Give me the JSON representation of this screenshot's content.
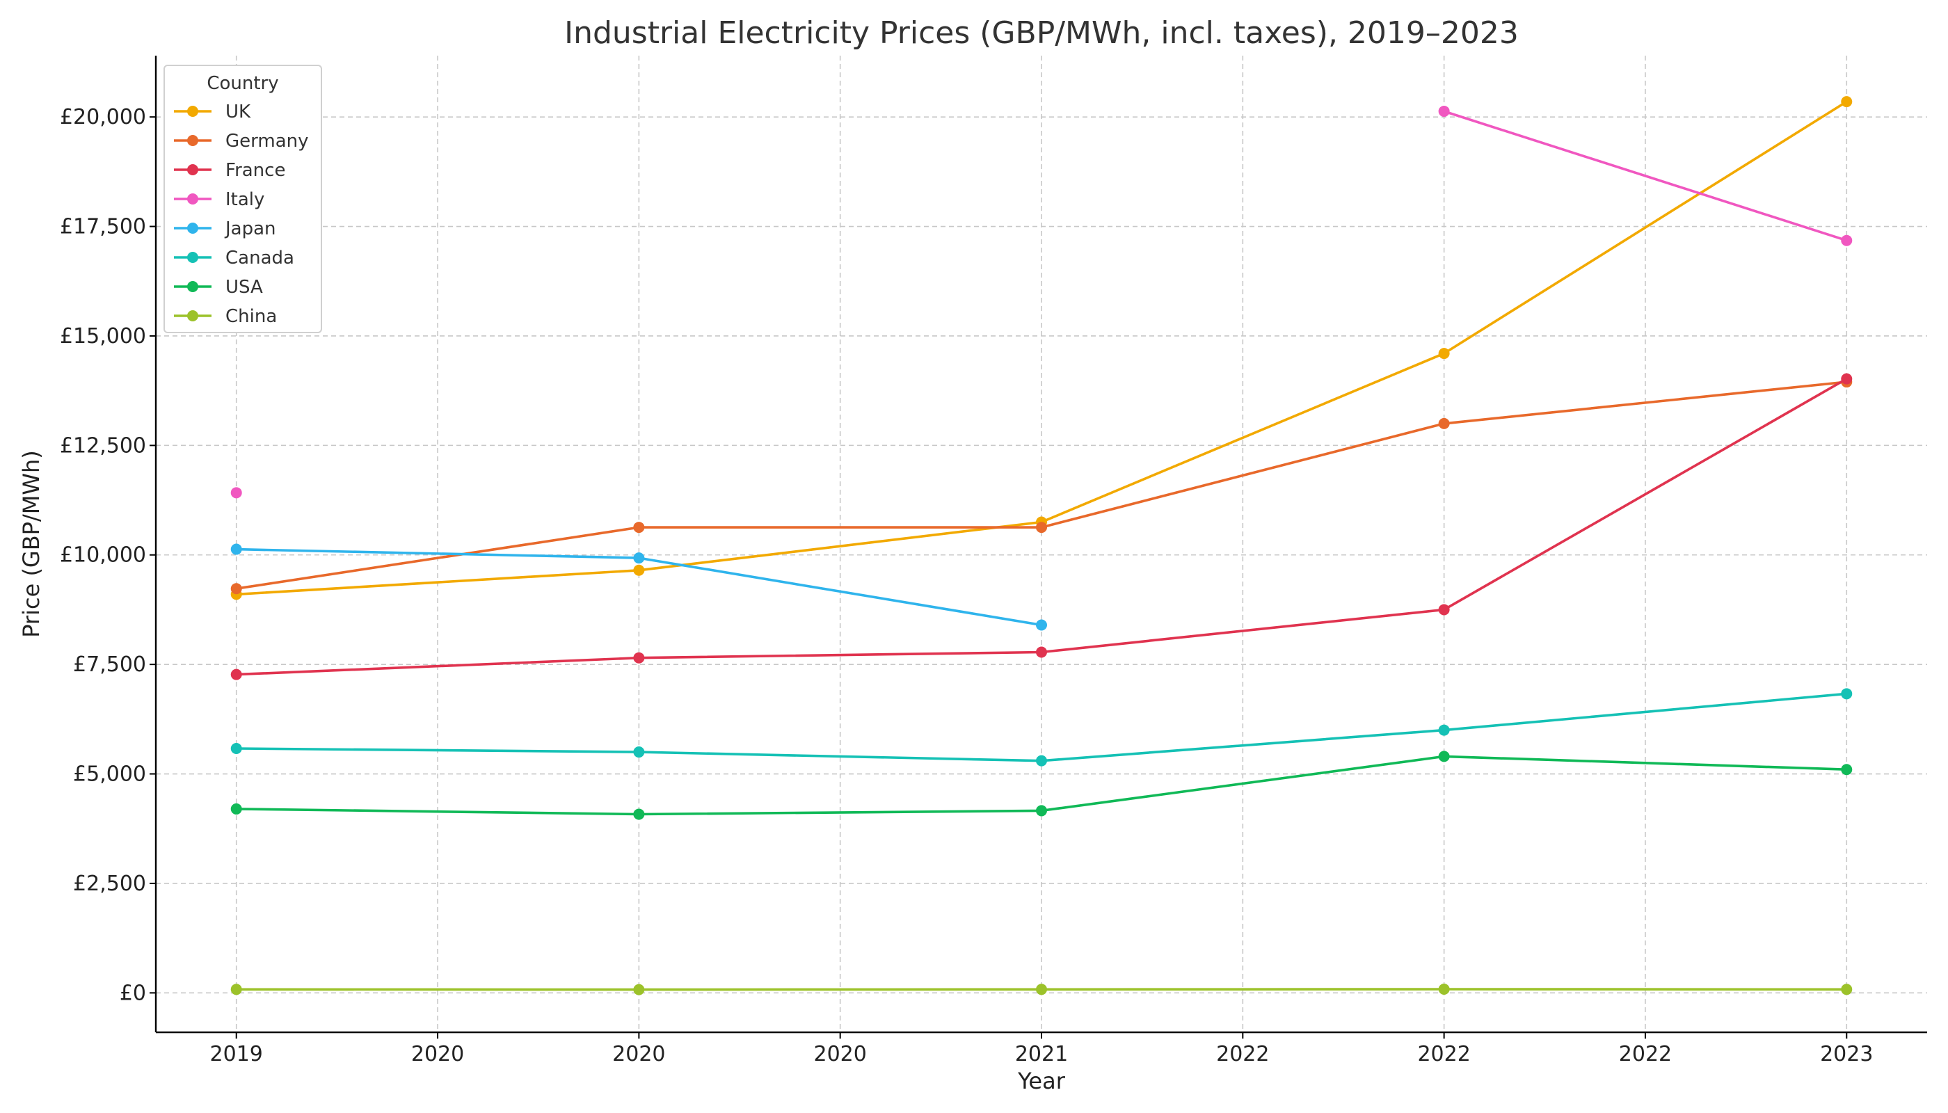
{
  "chart_data": {
    "type": "line",
    "title": "Industrial Electricity Prices (GBP/MWh, incl. taxes), 2019–2023",
    "xlabel": "Year",
    "ylabel": "Price (GBP/MWh)",
    "x": [
      2019,
      2020,
      2021,
      2022,
      2023
    ],
    "xlim": [
      2018.8,
      2023.2
    ],
    "ylim": [
      -900,
      21400
    ],
    "x_ticks": [
      {
        "value": 2019.0,
        "label": "2019"
      },
      {
        "value": 2019.5,
        "label": "2020"
      },
      {
        "value": 2020.0,
        "label": "2020"
      },
      {
        "value": 2020.5,
        "label": "2020"
      },
      {
        "value": 2021.0,
        "label": "2021"
      },
      {
        "value": 2021.5,
        "label": "2022"
      },
      {
        "value": 2022.0,
        "label": "2022"
      },
      {
        "value": 2022.5,
        "label": "2022"
      },
      {
        "value": 2023.0,
        "label": "2023"
      }
    ],
    "y_ticks": [
      {
        "value": 0,
        "label": "£0"
      },
      {
        "value": 2500,
        "label": "£2,500"
      },
      {
        "value": 5000,
        "label": "£5,000"
      },
      {
        "value": 7500,
        "label": "£7,500"
      },
      {
        "value": 10000,
        "label": "£10,000"
      },
      {
        "value": 12500,
        "label": "£12,500"
      },
      {
        "value": 15000,
        "label": "£15,000"
      },
      {
        "value": 17500,
        "label": "£17,500"
      },
      {
        "value": 20000,
        "label": "£20,000"
      }
    ],
    "grid": true,
    "legend": {
      "title": "Country",
      "placement": "top-left"
    },
    "series": [
      {
        "name": "UK",
        "color": "#F2A900",
        "values": [
          9100,
          9650,
          10750,
          14600,
          20350
        ]
      },
      {
        "name": "Germany",
        "color": "#E8692B",
        "values": [
          9230,
          10630,
          10630,
          13000,
          13950
        ]
      },
      {
        "name": "France",
        "color": "#E0334F",
        "values": [
          7270,
          7650,
          7780,
          8750,
          14020
        ]
      },
      {
        "name": "Italy",
        "color": "#F057C0",
        "values": [
          11420,
          null,
          null,
          20130,
          17180
        ]
      },
      {
        "name": "Japan",
        "color": "#2FB4EC",
        "values": [
          10130,
          9930,
          8400,
          null,
          null
        ]
      },
      {
        "name": "Canada",
        "color": "#15C1B5",
        "values": [
          5580,
          5500,
          5300,
          6000,
          6830
        ]
      },
      {
        "name": "USA",
        "color": "#10B957",
        "values": [
          4200,
          4080,
          4160,
          5400,
          5100
        ]
      },
      {
        "name": "China",
        "color": "#9CC22A",
        "values": [
          80,
          75,
          80,
          85,
          80
        ]
      }
    ]
  }
}
